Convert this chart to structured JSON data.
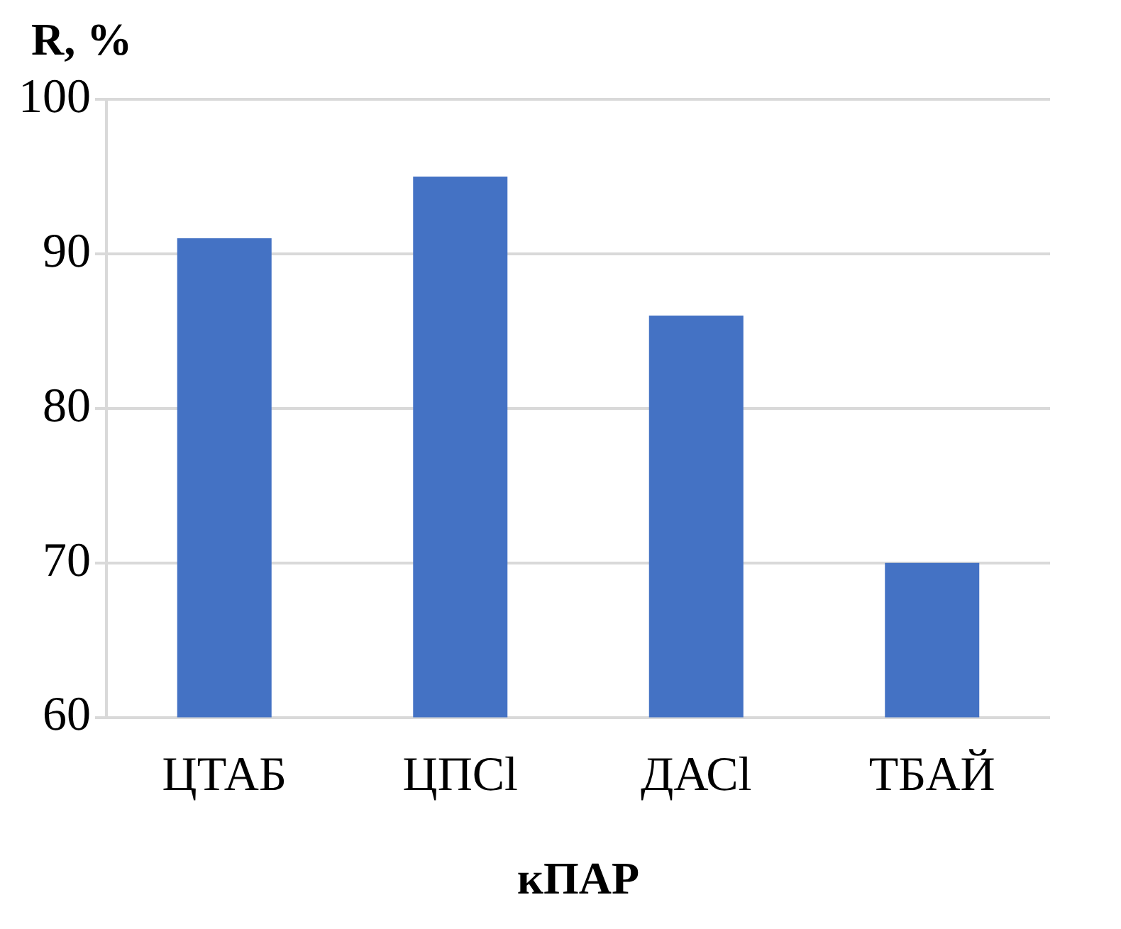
{
  "chart_data": {
    "type": "bar",
    "ylabel": "R, %",
    "xlabel": "кПАР",
    "categories": [
      "ЦТАБ",
      "ЦПСl",
      "ДАСl",
      "ТБАЙ"
    ],
    "values": [
      91,
      95,
      86,
      70
    ],
    "color": "#4472c4",
    "ylim": [
      60,
      100
    ],
    "yticks": [
      60,
      70,
      80,
      90,
      100
    ],
    "grid": "y"
  }
}
